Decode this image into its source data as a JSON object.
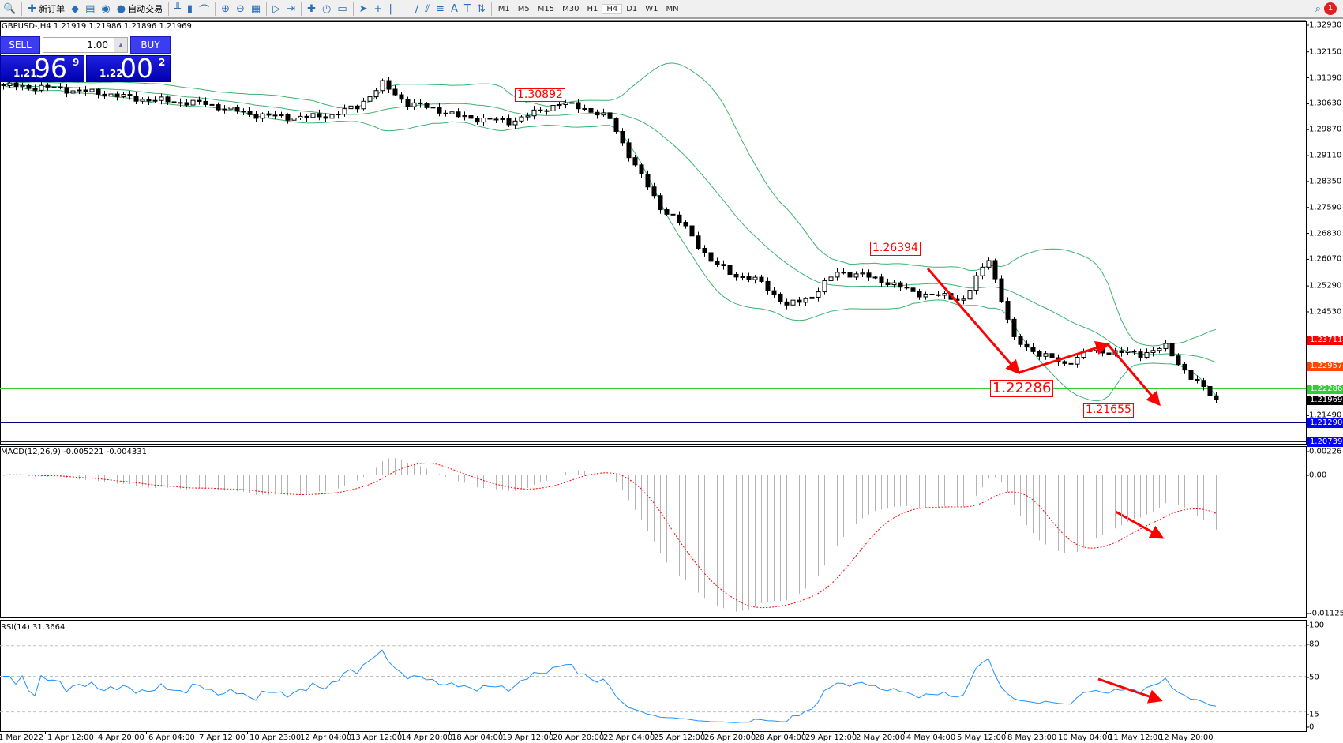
{
  "toolbar": {
    "items": [
      {
        "name": "search",
        "icon": "🔍",
        "label": ""
      },
      {
        "name": "new-order",
        "icon": "✚",
        "label": "新订单"
      },
      {
        "name": "market-watch",
        "icon": "◆",
        "label": ""
      },
      {
        "name": "data-window",
        "icon": "▤",
        "label": ""
      },
      {
        "name": "signals",
        "icon": "◉",
        "label": ""
      },
      {
        "name": "auto-trading",
        "icon": "●",
        "label": "自动交易"
      }
    ],
    "chart_tools": [
      {
        "name": "bar-chart",
        "icon": "╨"
      },
      {
        "name": "candlestick",
        "icon": "▮"
      },
      {
        "name": "line-chart",
        "icon": "⌒"
      },
      {
        "name": "zoom-in",
        "icon": "⊕"
      },
      {
        "name": "zoom-out",
        "icon": "⊖"
      },
      {
        "name": "tile-windows",
        "icon": "▦"
      },
      {
        "name": "auto-scroll",
        "icon": "▷"
      },
      {
        "name": "chart-shift",
        "icon": "⇥"
      },
      {
        "name": "indicators",
        "icon": "✚"
      },
      {
        "name": "periods",
        "icon": "◷"
      },
      {
        "name": "templates",
        "icon": "▭"
      },
      {
        "name": "cursor",
        "icon": "➤"
      },
      {
        "name": "crosshair",
        "icon": "+"
      },
      {
        "name": "vertical-line",
        "icon": "|"
      },
      {
        "name": "horizontal-line",
        "icon": "—"
      },
      {
        "name": "trendline",
        "icon": "/"
      },
      {
        "name": "equidistant-channel",
        "icon": "⫽"
      },
      {
        "name": "fibonacci",
        "icon": "≡"
      },
      {
        "name": "text",
        "icon": "A"
      },
      {
        "name": "text-label",
        "icon": "T"
      },
      {
        "name": "arrows",
        "icon": "⇅"
      }
    ],
    "timeframes": [
      "M1",
      "M5",
      "M15",
      "M30",
      "H1",
      "H4",
      "D1",
      "W1",
      "MN"
    ],
    "active_timeframe": "H4",
    "notification_count": "1"
  },
  "chart": {
    "title": "GBPUSD-,H4  1.21919 1.21986 1.21896 1.21969",
    "one_click": {
      "sell": "SELL",
      "buy": "BUY",
      "lot": "1.00",
      "bid": {
        "small": "1.21",
        "big": "96",
        "tiny": "9"
      },
      "ask": {
        "small": "1.22",
        "big": "00",
        "tiny": "2"
      }
    },
    "macd_title": "MACD(12,26,9) -0.005221 -0.004331",
    "rsi_title": "RSI(14) 31.3664",
    "colors": {
      "bands": "#3cb371",
      "macd_hist": "#b4b4b4",
      "macd_signal": "#ff0000",
      "rsi": "#1e90ff",
      "arrows": "#ff0000"
    }
  },
  "chart_data": {
    "type": "candlestick",
    "symbol": "GBPUSD-",
    "timeframe": "H4",
    "price_ticks": [
      "1.32930",
      "1.32150",
      "1.31390",
      "1.30630",
      "1.29870",
      "1.29110",
      "1.28350",
      "1.27590",
      "1.26830",
      "1.26070",
      "1.25290",
      "1.24530",
      "1.21490"
    ],
    "ylim": [
      1.2074,
      1.3293
    ],
    "close_approx_every_16h": [
      1.3116,
      1.3112,
      1.3109,
      1.31,
      1.3093,
      1.308,
      1.3073,
      1.3068,
      1.3063,
      1.3045,
      1.303,
      1.3025,
      1.3023,
      1.303,
      1.3055,
      1.312,
      1.3063,
      1.305,
      1.3025,
      1.3018,
      1.301,
      1.3035,
      1.3065,
      1.305,
      1.3018,
      1.288,
      1.276,
      1.27,
      1.26,
      1.256,
      1.254,
      1.247,
      1.25,
      1.257,
      1.256,
      1.254,
      1.251,
      1.25,
      1.249,
      1.261,
      1.237,
      1.233,
      1.23,
      1.234,
      1.2335,
      1.233,
      1.235,
      1.226,
      1.2197
    ],
    "time_labels": [
      "1 Mar 2022",
      "1 Apr 12:00",
      "4 Apr 20:00",
      "6 Apr 04:00",
      "7 Apr 12:00",
      "10 Apr 23:00",
      "12 Apr 04:00",
      "13 Apr 12:00",
      "14 Apr 20:00",
      "18 Apr 04:00",
      "19 Apr 12:00",
      "20 Apr 20:00",
      "22 Apr 04:00",
      "25 Apr 12:00",
      "26 Apr 20:00",
      "28 Apr 04:00",
      "29 Apr 12:00",
      "2 May 20:00",
      "4 May 04:00",
      "5 May 12:00",
      "8 May 23:00",
      "10 May 04:00",
      "11 May 12:00",
      "12 May 20:00"
    ],
    "indicators": [
      "Bollinger Bands",
      "MACD(12,26,9)",
      "RSI(14)"
    ],
    "horizontal_lines": [
      {
        "price": "1.23711",
        "color": "#ff0000"
      },
      {
        "price": "1.22957",
        "color": "#ff4500"
      },
      {
        "price": "1.22286",
        "color": "#32cd32"
      },
      {
        "price": "1.21969",
        "color": "#000000",
        "line": "#c0c0c0"
      },
      {
        "price": "1.21290",
        "color": "#0000ff",
        "line": "#000080"
      },
      {
        "price": "1.20739",
        "color": "#0000ff",
        "line": "#0000ff"
      }
    ],
    "annotations": [
      {
        "text": "1.30892",
        "price": 1.30892,
        "size": "small"
      },
      {
        "text": "1.26394",
        "price": 1.26394,
        "size": "small"
      },
      {
        "text": "1.22286",
        "price": 1.22286,
        "size": "large"
      },
      {
        "text": "1.21655",
        "price": 1.21655,
        "size": "small"
      }
    ],
    "macd": {
      "ticks": [
        "0.00226",
        "0.00",
        "-0.011252"
      ],
      "ylim": [
        -0.011252,
        0.00226
      ]
    },
    "rsi": {
      "ticks": [
        "100",
        "80",
        "50",
        "15",
        "0"
      ],
      "levels": [
        80,
        50,
        15
      ],
      "ylim": [
        0,
        100
      ]
    }
  }
}
